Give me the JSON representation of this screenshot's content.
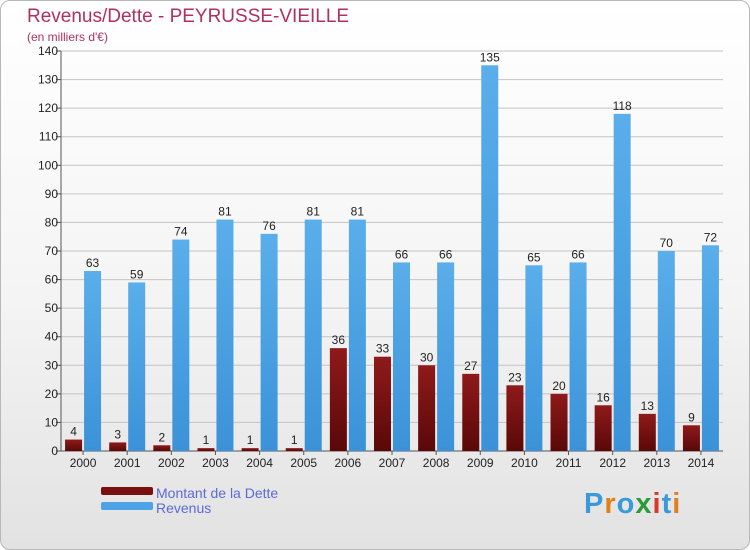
{
  "title": "Revenus/Dette - PEYRUSSE-VIEILLE",
  "subtitle": "(en milliers d'€)",
  "logo": {
    "text": "Proxiti",
    "letters": [
      "P",
      "r",
      "o",
      "x",
      "i",
      "t",
      "i"
    ],
    "colors": [
      "#3a9ad9",
      "#e0801a",
      "#3a9ad9",
      "#2a9a3a",
      "#d83a2a",
      "#3a9ad9",
      "#e0801a"
    ]
  },
  "colors": {
    "dette": "#7a0f0f",
    "revenus": "#4da3e6",
    "title": "#b03060"
  },
  "chart_data": {
    "type": "bar",
    "categories": [
      "2000",
      "2001",
      "2002",
      "2003",
      "2004",
      "2005",
      "2006",
      "2007",
      "2008",
      "2009",
      "2010",
      "2011",
      "2012",
      "2013",
      "2014"
    ],
    "series": [
      {
        "name": "Montant de la Dette",
        "values": [
          4,
          3,
          2,
          1,
          1,
          1,
          36,
          33,
          30,
          27,
          23,
          20,
          16,
          13,
          9
        ]
      },
      {
        "name": "Revenus",
        "values": [
          63,
          59,
          74,
          81,
          76,
          81,
          81,
          66,
          66,
          135,
          65,
          66,
          118,
          70,
          72
        ]
      }
    ],
    "ylim": [
      0,
      140
    ],
    "yticks": [
      0,
      10,
      20,
      30,
      40,
      50,
      60,
      70,
      80,
      90,
      100,
      110,
      120,
      130,
      140
    ],
    "grid": true,
    "legend": "bottom-left"
  }
}
